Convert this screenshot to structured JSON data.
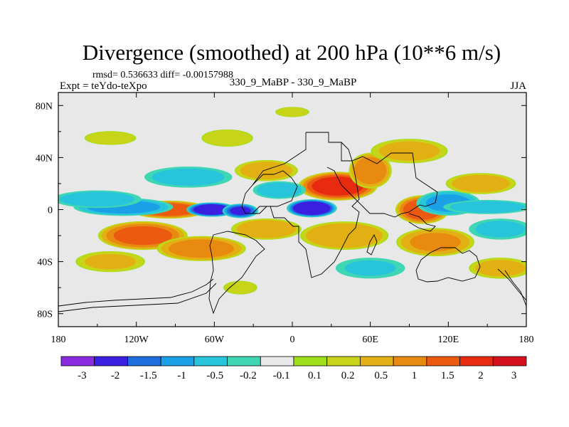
{
  "chart_data": {
    "type": "heatmap",
    "title": "Divergence (smoothed) at 200 hPa (10**6 m/s)",
    "stats_line": "rmsd= 0.536633 diff= -0.00157988",
    "experiment_label": "Expt = teYdo-teXpo",
    "comparison_label": "330_9_MaBP - 330_9_MaBP",
    "season": "JJA",
    "x_axis": {
      "range": [
        -180,
        180
      ],
      "ticks": [
        {
          "value": -180,
          "label": "180"
        },
        {
          "value": -120,
          "label": "120W"
        },
        {
          "value": -60,
          "label": "60W"
        },
        {
          "value": 0,
          "label": "0"
        },
        {
          "value": 60,
          "label": "60E"
        },
        {
          "value": 120,
          "label": "120E"
        },
        {
          "value": 180,
          "label": "180"
        }
      ]
    },
    "y_axis": {
      "range": [
        -90,
        90
      ],
      "ticks": [
        {
          "value": 80,
          "label": "80N"
        },
        {
          "value": 40,
          "label": "40N"
        },
        {
          "value": 0,
          "label": "0"
        },
        {
          "value": -40,
          "label": "40S"
        },
        {
          "value": -80,
          "label": "80S"
        }
      ]
    },
    "colorbar": {
      "colors": [
        "#8a2be2",
        "#3a1fe0",
        "#1f6fe0",
        "#1aa0e6",
        "#27c4dc",
        "#3fd6b4",
        "#e8e8e8",
        "#9fe01a",
        "#c8d418",
        "#e2b012",
        "#e88a10",
        "#ec5a12",
        "#e82a10",
        "#d4101c"
      ],
      "labels": [
        "-3",
        "-2",
        "-1.5",
        "-1",
        "-0.5",
        "-0.2",
        "-0.1",
        "0.1",
        "0.2",
        "0.5",
        "1",
        "1.5",
        "2",
        "3"
      ]
    },
    "blobs": [
      {
        "lon": -95,
        "lat": 0,
        "rlon": 22,
        "rlat": 5,
        "v": 1.8
      },
      {
        "lon": -62,
        "lat": 0,
        "rlon": 14,
        "rlat": 4,
        "v": -2.6
      },
      {
        "lon": -40,
        "lat": -1,
        "rlon": 10,
        "rlat": 4,
        "v": -2.0
      },
      {
        "lon": 15,
        "lat": 1,
        "rlon": 14,
        "rlat": 5,
        "v": -2.7
      },
      {
        "lon": -130,
        "lat": 2,
        "rlon": 28,
        "rlat": 5,
        "v": -1.2
      },
      {
        "lon": -150,
        "lat": 8,
        "rlon": 25,
        "rlat": 5,
        "v": -0.8
      },
      {
        "lon": 35,
        "lat": 18,
        "rlon": 22,
        "rlat": 8,
        "v": 2.2
      },
      {
        "lon": 60,
        "lat": 30,
        "rlon": 12,
        "rlat": 10,
        "v": 1.3
      },
      {
        "lon": 100,
        "lat": 0,
        "rlon": 15,
        "rlat": 8,
        "v": 1.8
      },
      {
        "lon": 120,
        "lat": 5,
        "rlon": 18,
        "rlat": 7,
        "v": -1.1
      },
      {
        "lon": 150,
        "lat": 2,
        "rlon": 25,
        "rlat": 4,
        "v": -0.8
      },
      {
        "lon": 145,
        "lat": 20,
        "rlon": 20,
        "rlat": 6,
        "v": 0.7
      },
      {
        "lon": -115,
        "lat": -20,
        "rlon": 25,
        "rlat": 8,
        "v": 1.6
      },
      {
        "lon": -70,
        "lat": -30,
        "rlon": 25,
        "rlat": 7,
        "v": 1.2
      },
      {
        "lon": -20,
        "lat": -15,
        "rlon": 20,
        "rlat": 6,
        "v": 0.8
      },
      {
        "lon": 40,
        "lat": -20,
        "rlon": 25,
        "rlat": 8,
        "v": 0.9
      },
      {
        "lon": 110,
        "lat": -25,
        "rlon": 22,
        "rlat": 8,
        "v": 1.0
      },
      {
        "lon": 160,
        "lat": -15,
        "rlon": 18,
        "rlat": 6,
        "v": -0.6
      },
      {
        "lon": -80,
        "lat": 25,
        "rlon": 25,
        "rlat": 6,
        "v": -0.7
      },
      {
        "lon": -20,
        "lat": 30,
        "rlon": 18,
        "rlat": 6,
        "v": 0.7
      },
      {
        "lon": 90,
        "lat": 45,
        "rlon": 22,
        "rlat": 7,
        "v": 0.6
      },
      {
        "lon": -10,
        "lat": 15,
        "rlon": 15,
        "rlat": 5,
        "v": -0.8
      },
      {
        "lon": -140,
        "lat": -40,
        "rlon": 20,
        "rlat": 6,
        "v": 0.5
      },
      {
        "lon": 160,
        "lat": -45,
        "rlon": 18,
        "rlat": 6,
        "v": 0.6
      },
      {
        "lon": 60,
        "lat": -45,
        "rlon": 20,
        "rlat": 6,
        "v": -0.5
      },
      {
        "lon": -50,
        "lat": 55,
        "rlon": 15,
        "rlat": 5,
        "v": 0.4
      },
      {
        "lon": 0,
        "lat": 75,
        "rlon": 10,
        "rlat": 3,
        "v": 0.3
      },
      {
        "lon": -140,
        "lat": 55,
        "rlon": 15,
        "rlat": 4,
        "v": 0.4
      },
      {
        "lon": -40,
        "lat": -60,
        "rlon": 10,
        "rlat": 4,
        "v": 0.3
      }
    ]
  }
}
